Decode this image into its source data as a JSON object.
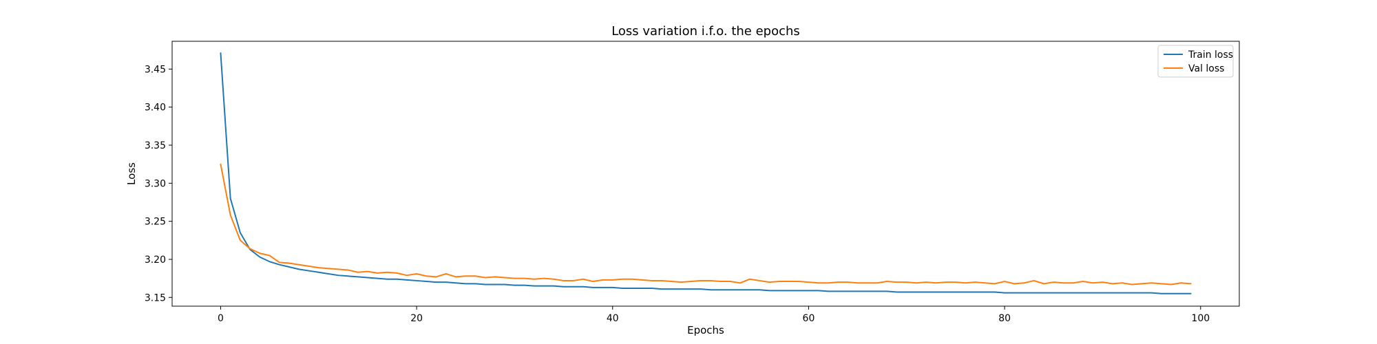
{
  "chart_data": {
    "type": "line",
    "title": "Loss variation i.f.o. the epochs",
    "xlabel": "Epochs",
    "ylabel": "Loss",
    "xlim": [
      -4.95,
      103.95
    ],
    "ylim": [
      3.1385,
      3.4865
    ],
    "xticks": [
      0,
      20,
      40,
      60,
      80,
      100
    ],
    "yticks": [
      3.15,
      3.2,
      3.25,
      3.3,
      3.35,
      3.4,
      3.45
    ],
    "grid": false,
    "legend_position": "top-right",
    "series": [
      {
        "name": "Train loss",
        "color": "#1f77b4",
        "x_start": 0,
        "values": [
          3.471,
          3.28,
          3.235,
          3.213,
          3.203,
          3.197,
          3.193,
          3.19,
          3.187,
          3.185,
          3.183,
          3.181,
          3.179,
          3.178,
          3.177,
          3.176,
          3.175,
          3.174,
          3.174,
          3.173,
          3.172,
          3.171,
          3.17,
          3.17,
          3.169,
          3.168,
          3.168,
          3.167,
          3.167,
          3.167,
          3.166,
          3.166,
          3.165,
          3.165,
          3.165,
          3.164,
          3.164,
          3.164,
          3.163,
          3.163,
          3.163,
          3.162,
          3.162,
          3.162,
          3.162,
          3.161,
          3.161,
          3.161,
          3.161,
          3.161,
          3.16,
          3.16,
          3.16,
          3.16,
          3.16,
          3.16,
          3.159,
          3.159,
          3.159,
          3.159,
          3.159,
          3.159,
          3.158,
          3.158,
          3.158,
          3.158,
          3.158,
          3.158,
          3.158,
          3.157,
          3.157,
          3.157,
          3.157,
          3.157,
          3.157,
          3.157,
          3.157,
          3.157,
          3.157,
          3.157,
          3.156,
          3.156,
          3.156,
          3.156,
          3.156,
          3.156,
          3.156,
          3.156,
          3.156,
          3.156,
          3.156,
          3.156,
          3.156,
          3.156,
          3.156,
          3.156,
          3.155,
          3.155,
          3.155,
          3.155
        ]
      },
      {
        "name": "Val loss",
        "color": "#ff7f0e",
        "x_start": 0,
        "values": [
          3.325,
          3.258,
          3.225,
          3.214,
          3.208,
          3.205,
          3.196,
          3.195,
          3.193,
          3.191,
          3.189,
          3.188,
          3.187,
          3.186,
          3.183,
          3.184,
          3.182,
          3.183,
          3.182,
          3.179,
          3.181,
          3.178,
          3.177,
          3.181,
          3.177,
          3.178,
          3.178,
          3.176,
          3.177,
          3.176,
          3.175,
          3.175,
          3.174,
          3.175,
          3.174,
          3.172,
          3.172,
          3.174,
          3.171,
          3.173,
          3.173,
          3.174,
          3.174,
          3.173,
          3.172,
          3.172,
          3.171,
          3.17,
          3.171,
          3.172,
          3.172,
          3.171,
          3.171,
          3.169,
          3.174,
          3.172,
          3.17,
          3.171,
          3.171,
          3.171,
          3.17,
          3.169,
          3.169,
          3.17,
          3.17,
          3.169,
          3.169,
          3.169,
          3.171,
          3.17,
          3.17,
          3.169,
          3.17,
          3.169,
          3.17,
          3.17,
          3.169,
          3.17,
          3.169,
          3.168,
          3.171,
          3.168,
          3.169,
          3.172,
          3.168,
          3.17,
          3.169,
          3.169,
          3.171,
          3.169,
          3.17,
          3.168,
          3.169,
          3.167,
          3.168,
          3.169,
          3.168,
          3.167,
          3.169,
          3.168
        ]
      }
    ]
  }
}
